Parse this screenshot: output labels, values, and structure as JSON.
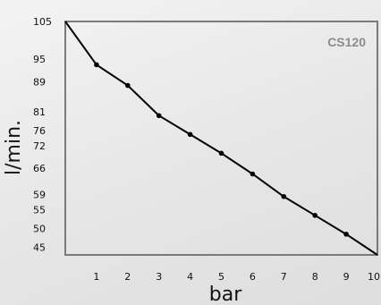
{
  "chart_data": {
    "type": "line",
    "title": "CS120",
    "xlabel": "bar",
    "ylabel": "l/min.",
    "x": [
      0,
      1,
      2,
      3,
      4,
      5,
      6,
      7,
      8,
      9,
      10
    ],
    "series": [
      {
        "values": [
          105,
          93.5,
          88,
          80,
          75,
          70,
          64.5,
          58.5,
          53.5,
          48.5,
          43
        ]
      }
    ],
    "xticks": [
      1,
      2,
      3,
      4,
      5,
      6,
      7,
      8,
      9,
      10
    ],
    "xtick_labels": [
      "1",
      "2",
      "3",
      "4",
      "5",
      "6",
      "7",
      "8",
      "9",
      "10"
    ],
    "yticks": [
      105,
      95,
      89,
      81,
      76,
      72,
      66,
      59,
      55,
      50,
      45
    ],
    "ytick_labels": [
      "105",
      "95",
      "89",
      "81",
      "76",
      "72",
      "66",
      "59",
      "55",
      "50",
      "45"
    ],
    "xlim": [
      0,
      10
    ],
    "ylim": [
      43,
      105
    ],
    "grid": false,
    "legend": "none",
    "colors": {
      "line": "#000000",
      "frame": "#7a7a7a",
      "title": "#8c8c8c"
    }
  }
}
